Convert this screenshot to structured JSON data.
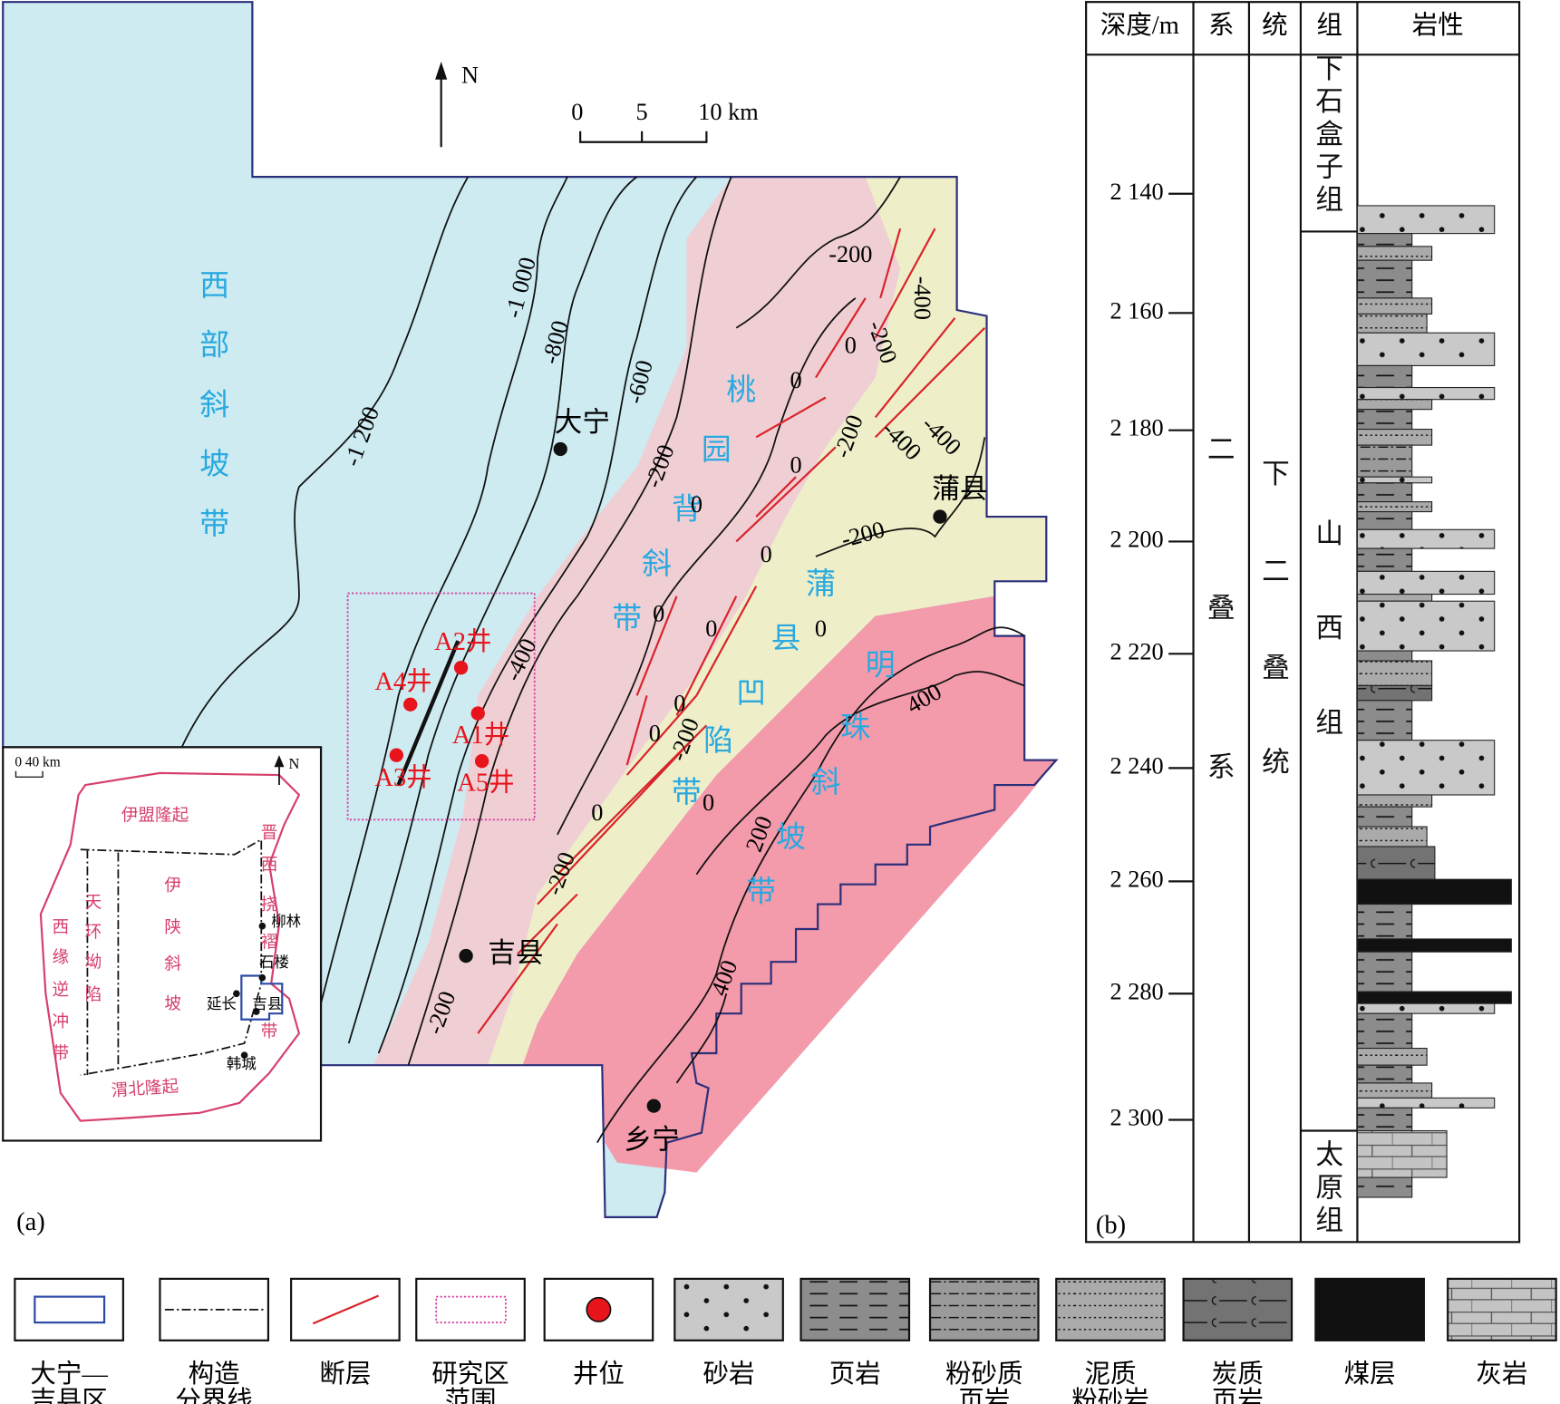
{
  "map": {
    "panel_label": "(a)",
    "north": "N",
    "scale_labels": [
      "0",
      "5",
      "10 km"
    ],
    "zones": [
      "西部斜坡带",
      "桃园背斜带",
      "蒲县凹陷带",
      "明珠斜坡带"
    ],
    "towns": [
      "大宁",
      "蒲县",
      "吉县",
      "乡宁"
    ],
    "wells": [
      "A1井",
      "A2井",
      "A3井",
      "A4井",
      "A5井"
    ],
    "contour_labels": [
      "-1 200",
      "-1 000",
      "-800",
      "-600",
      "-400",
      "-200",
      "0",
      "-200",
      "-400",
      "0",
      "-200",
      "0",
      "0",
      "-200",
      "-400",
      "-400",
      "-200",
      "0",
      "0",
      "0",
      "0",
      "0",
      "-200",
      "0",
      "0",
      "0",
      "-200",
      "-200",
      "400",
      "200",
      "400"
    ]
  },
  "inset": {
    "scale": "0 40 km",
    "north": "N",
    "regions": [
      "伊盟隆起",
      "晋西挠褶带",
      "天环坳陷",
      "伊陕斜坡",
      "西缘逆冲带",
      "渭北隆起"
    ],
    "towns": [
      "柳林",
      "石楼",
      "延长",
      "吉县",
      "韩城"
    ]
  },
  "column": {
    "panel_label": "(b)",
    "headers": [
      "深度/m",
      "系",
      "统",
      "组",
      "岩性"
    ],
    "depths": [
      "2 140",
      "2 160",
      "2 180",
      "2 200",
      "2 220",
      "2 240",
      "2 260",
      "2 280",
      "2 300"
    ],
    "system": "二叠系",
    "series": "下二叠统",
    "formations": [
      "下石盒子组",
      "山西组",
      "太原组"
    ]
  },
  "legend": [
    [
      "大宁—",
      "吉县区"
    ],
    [
      "构造",
      "分界线"
    ],
    [
      "断层"
    ],
    [
      "研究区",
      "范围"
    ],
    [
      "井位"
    ],
    [
      "砂岩"
    ],
    [
      "页岩"
    ],
    [
      "粉砂质",
      "页岩"
    ],
    [
      "泥质",
      "粉砂岩"
    ],
    [
      "炭质",
      "页岩"
    ],
    [
      "煤层"
    ],
    [
      "灰岩"
    ]
  ]
}
